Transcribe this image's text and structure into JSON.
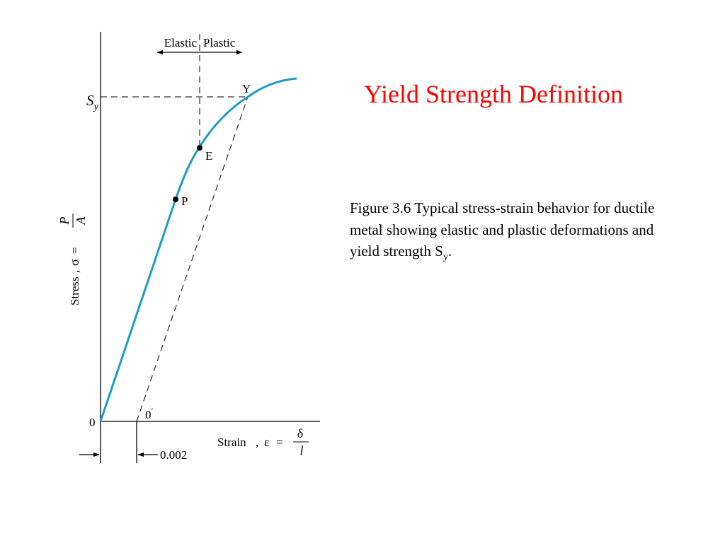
{
  "slide": {
    "title": "Yield Strength Definition",
    "title_color": "#ff0000",
    "caption_prefix": "Figure 3.6  Typical stress-strain behavior for ductile metal showing elastic and plastic deformations and yield strength S",
    "caption_sub": "y",
    "caption_suffix": "."
  },
  "diagram": {
    "curve_color": "#1a9bc9",
    "region_elastic": "Elastic",
    "region_plastic": "Plastic",
    "yield_stress_label": "S",
    "yield_stress_sub": "y",
    "point_yield": "Y",
    "point_elastic_limit": "E",
    "point_proportional_limit": "P",
    "origin": "0",
    "offset_origin": "0",
    "offset_prime": "′",
    "offset_strain": "0.002",
    "y_axis": {
      "word": "Stress",
      "comma": ",",
      "symbol": "σ",
      "equals": "=",
      "numerator": "P",
      "denominator": "A"
    },
    "x_axis": {
      "word": "Strain",
      "comma": ",",
      "symbol": "ε",
      "equals": "=",
      "numerator": "δ",
      "denominator": "l"
    }
  }
}
